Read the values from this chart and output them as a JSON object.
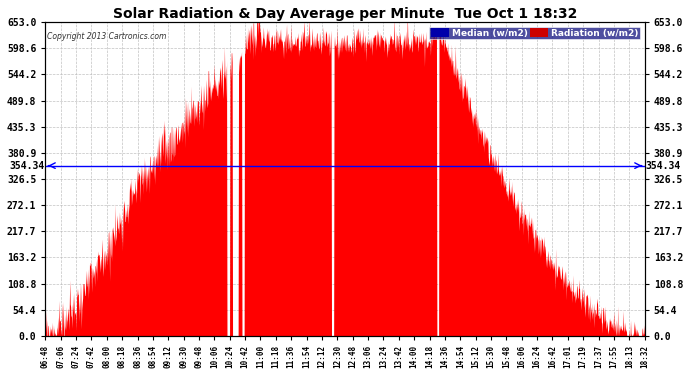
{
  "title": "Solar Radiation & Day Average per Minute  Tue Oct 1 18:32",
  "copyright_text": "Copyright 2013 Cartronics.com",
  "median_value": 354.34,
  "median_label": "354.34",
  "y_max": 653.0,
  "y_ticks": [
    0.0,
    54.4,
    108.8,
    163.2,
    217.7,
    272.1,
    326.5,
    380.9,
    435.3,
    489.8,
    544.2,
    598.6,
    653.0
  ],
  "fill_color": "#FF0000",
  "median_line_color": "#0000FF",
  "background_color": "#FFFFFF",
  "plot_bg_color": "#FFFFFF",
  "grid_color": "#AAAAAA",
  "legend_median_bg": "#0000AA",
  "legend_radiation_bg": "#CC0000",
  "x_labels": [
    "06:48",
    "07:06",
    "07:24",
    "07:42",
    "08:00",
    "08:18",
    "08:36",
    "08:54",
    "09:12",
    "09:30",
    "09:48",
    "10:06",
    "10:24",
    "10:42",
    "11:00",
    "11:18",
    "11:36",
    "11:54",
    "12:12",
    "12:30",
    "12:48",
    "13:06",
    "13:24",
    "13:42",
    "14:00",
    "14:18",
    "14:36",
    "14:54",
    "15:12",
    "15:30",
    "15:48",
    "16:06",
    "16:24",
    "16:42",
    "17:01",
    "17:19",
    "17:37",
    "17:55",
    "18:13",
    "18:32"
  ]
}
